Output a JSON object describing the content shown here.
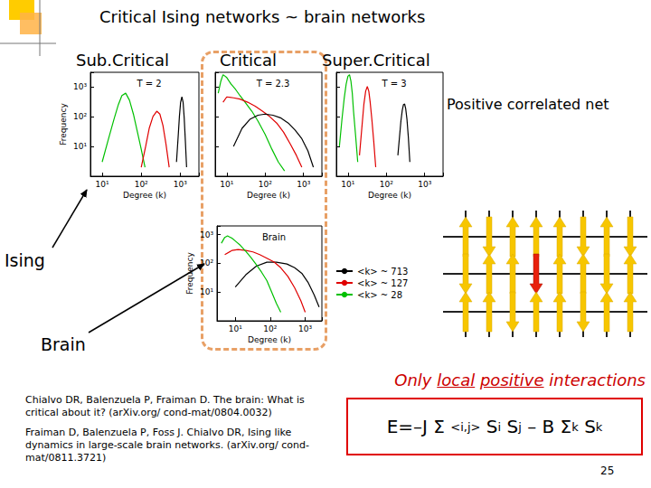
{
  "slide": {
    "title": "Critical Ising networks ~ brain networks",
    "regimes": [
      "Sub.Critical",
      "Critical",
      "Super.Critical"
    ],
    "lattice_caption": "Positive correlated net",
    "arrow_labels": [
      "Ising",
      "Brain"
    ],
    "interaction_note": [
      {
        "text": "Only "
      },
      {
        "text": "local",
        "underline": true
      },
      {
        "text": " "
      },
      {
        "text": "positive",
        "underline": true
      },
      {
        "text": " interactions"
      }
    ],
    "hamiltonian": [
      {
        "text": "E=–J Σ "
      },
      {
        "sub": "<i,j>"
      },
      {
        "text": " S"
      },
      {
        "sub": "i"
      },
      {
        "text": " S"
      },
      {
        "sub": "j"
      },
      {
        "text": " – B Σ"
      },
      {
        "sub": "k"
      },
      {
        "text": " S"
      },
      {
        "sub": "k"
      }
    ],
    "references": [
      "Chialvo DR, Balenzuela P, Fraiman D. The brain: What is critical about it? (arXiv.org/ cond-mat/0804.0032)",
      "Fraiman D, Balenzuela P, Foss J. Chialvo DR, Ising like dynamics in large-scale brain networks. (arXiv.org/ cond-mat/0811.3721)"
    ],
    "page": 25
  },
  "chart_data": [
    {
      "type": "line",
      "title": "T = 2",
      "x_label": "Degree (k)",
      "y_label": "Frequency",
      "log": true,
      "grid": false,
      "xlim": [
        5,
        3000
      ],
      "ylim": [
        1,
        3000
      ],
      "xticks": [
        {
          "value": 10,
          "label": "10¹"
        },
        {
          "value": 100,
          "label": "10²"
        },
        {
          "value": 1000,
          "label": "10³"
        }
      ],
      "yticks": [
        {
          "value": 10,
          "label": "10¹"
        },
        {
          "value": 100,
          "label": "10²"
        },
        {
          "value": 1000,
          "label": "10³"
        }
      ],
      "series": [
        {
          "color": "#00c000",
          "x": [
            10,
            14,
            20,
            26,
            32,
            40,
            50,
            63,
            80,
            100,
            125
          ],
          "values": [
            3,
            15,
            80,
            250,
            500,
            600,
            350,
            120,
            30,
            8,
            2
          ]
        },
        {
          "color": "#e00000",
          "x": [
            100,
            130,
            160,
            200,
            250,
            300,
            360,
            430,
            520
          ],
          "values": [
            2,
            10,
            40,
            100,
            150,
            120,
            50,
            12,
            2
          ]
        },
        {
          "color": "#000000",
          "x": [
            800,
            880,
            950,
            1020,
            1100,
            1180,
            1260,
            1350,
            1450
          ],
          "values": [
            3,
            20,
            100,
            300,
            450,
            300,
            90,
            15,
            2
          ]
        }
      ]
    },
    {
      "type": "line",
      "title": "T = 2.3",
      "x_label": "Degree (k)",
      "log": true,
      "grid": false,
      "tick_labels": "x",
      "xlim": [
        5,
        3000
      ],
      "ylim": [
        1,
        3000
      ],
      "xticks": [
        {
          "value": 10,
          "label": "10¹"
        },
        {
          "value": 100,
          "label": "10²"
        },
        {
          "value": 1000,
          "label": "10³"
        }
      ],
      "yticks": [
        {
          "value": 10,
          "label": "10¹"
        },
        {
          "value": 100,
          "label": "10²"
        },
        {
          "value": 1000,
          "label": "10³"
        }
      ],
      "series": [
        {
          "color": "#00c000",
          "x": [
            6,
            7,
            8,
            10,
            13,
            17,
            22,
            30,
            45,
            65,
            100,
            150,
            220,
            320
          ],
          "values": [
            600,
            1500,
            2500,
            2000,
            1200,
            800,
            500,
            300,
            150,
            70,
            25,
            8,
            3,
            1.5
          ]
        },
        {
          "color": "#e00000",
          "x": [
            8,
            10,
            15,
            22,
            35,
            55,
            85,
            130,
            200,
            300,
            450,
            650,
            900
          ],
          "values": [
            300,
            450,
            420,
            380,
            300,
            220,
            150,
            100,
            60,
            30,
            12,
            5,
            2
          ]
        },
        {
          "color": "#000000",
          "x": [
            15,
            25,
            40,
            65,
            100,
            160,
            250,
            400,
            600,
            900,
            1300,
            1800
          ],
          "values": [
            10,
            40,
            80,
            110,
            120,
            110,
            90,
            60,
            35,
            18,
            7,
            2
          ]
        }
      ]
    },
    {
      "type": "line",
      "title": "T = 3",
      "x_label": "Degree (k)",
      "log": true,
      "grid": false,
      "tick_labels": "x",
      "xlim": [
        5,
        3000
      ],
      "ylim": [
        1,
        3000
      ],
      "xticks": [
        {
          "value": 10,
          "label": "10¹"
        },
        {
          "value": 100,
          "label": "10²"
        },
        {
          "value": 1000,
          "label": "10³"
        }
      ],
      "yticks": [
        {
          "value": 10,
          "label": "10¹"
        },
        {
          "value": 100,
          "label": "10²"
        },
        {
          "value": 1000,
          "label": "10³"
        }
      ],
      "series": [
        {
          "color": "#00c000",
          "x": [
            6,
            7,
            8,
            9,
            10,
            11,
            12,
            13,
            14,
            16,
            18
          ],
          "values": [
            10,
            80,
            400,
            1200,
            2200,
            2500,
            1500,
            600,
            150,
            20,
            3
          ]
        },
        {
          "color": "#e00000",
          "x": [
            20,
            23,
            26,
            29,
            32,
            35,
            38,
            42,
            47,
            53
          ],
          "values": [
            5,
            40,
            250,
            700,
            1000,
            700,
            300,
            80,
            15,
            2
          ]
        },
        {
          "color": "#000000",
          "x": [
            200,
            220,
            240,
            260,
            280,
            300,
            320,
            345,
            375,
            410
          ],
          "values": [
            5,
            20,
            70,
            160,
            250,
            260,
            180,
            80,
            20,
            3
          ]
        }
      ]
    },
    {
      "type": "line",
      "title": "Brain",
      "x_label": "Degree (k)",
      "y_label": "Frequency",
      "log": true,
      "grid": false,
      "legend": "right",
      "xlim": [
        3,
        3000
      ],
      "ylim": [
        1,
        2000
      ],
      "xticks": [
        {
          "value": 10,
          "label": "10¹"
        },
        {
          "value": 100,
          "label": "10²"
        },
        {
          "value": 1000,
          "label": "10³"
        }
      ],
      "yticks": [
        {
          "value": 10,
          "label": "10¹"
        },
        {
          "value": 100,
          "label": "10²"
        },
        {
          "value": 1000,
          "label": "10³"
        }
      ],
      "series": [
        {
          "name": "<k> ~ 713",
          "color": "#000000",
          "x": [
            10,
            20,
            40,
            80,
            150,
            300,
            500,
            800,
            1200,
            1800,
            2500
          ],
          "values": [
            15,
            40,
            80,
            110,
            110,
            95,
            70,
            45,
            22,
            8,
            3
          ]
        },
        {
          "name": "<k> ~ 127",
          "color": "#e00000",
          "x": [
            5,
            8,
            12,
            20,
            32,
            50,
            80,
            130,
            200,
            320,
            500,
            750,
            1000
          ],
          "values": [
            200,
            280,
            300,
            280,
            250,
            200,
            150,
            110,
            70,
            35,
            14,
            5,
            2
          ]
        },
        {
          "name": "<k> ~ 28",
          "color": "#00c000",
          "x": [
            4,
            5,
            6,
            8,
            10,
            14,
            20,
            28,
            40,
            56,
            80,
            110,
            150,
            200
          ],
          "values": [
            500,
            800,
            900,
            750,
            600,
            420,
            260,
            160,
            90,
            50,
            25,
            10,
            4,
            2
          ]
        }
      ]
    }
  ]
}
